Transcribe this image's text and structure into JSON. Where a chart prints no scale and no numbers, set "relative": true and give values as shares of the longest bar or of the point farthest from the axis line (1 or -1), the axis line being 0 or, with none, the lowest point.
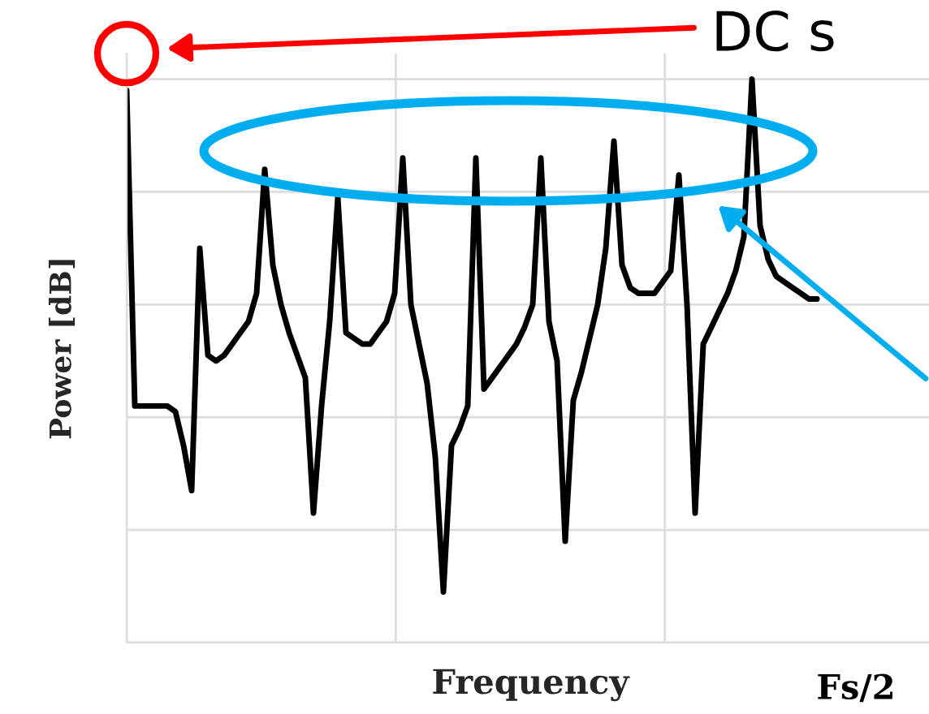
{
  "chart_data": {
    "type": "line",
    "relative": true,
    "xlabel": "Frequency",
    "ylabel": "Power [dB]",
    "grid": true,
    "annotations": [
      "DC s",
      "Fs/2"
    ],
    "categories": [
      null,
      null,
      null,
      null,
      null,
      null,
      null,
      null,
      null,
      null,
      null,
      null,
      null,
      null,
      null,
      null,
      null,
      null,
      null,
      null,
      null,
      null,
      null,
      null,
      null,
      null,
      null,
      null,
      null,
      null,
      null,
      null,
      null,
      null,
      null,
      null,
      null,
      null,
      null,
      null,
      null,
      null,
      null,
      null,
      null,
      null,
      null,
      null,
      null,
      null,
      null,
      null,
      null,
      null,
      null,
      null,
      null,
      null,
      null,
      null,
      null,
      null,
      null,
      null,
      null,
      null,
      null,
      null,
      null,
      null,
      null,
      null,
      null,
      null,
      null,
      null,
      null,
      null,
      null,
      null,
      null,
      null,
      null,
      null,
      null,
      null
    ],
    "series": [
      {
        "color": "#000000",
        "values": [
          0.98,
          0.42,
          0.42,
          0.42,
          0.42,
          0.42,
          0.41,
          0.35,
          0.27,
          0.7,
          0.51,
          0.5,
          0.51,
          0.53,
          0.55,
          0.57,
          0.62,
          0.84,
          0.67,
          0.6,
          0.55,
          0.51,
          0.47,
          0.23,
          0.42,
          0.57,
          0.79,
          0.55,
          0.54,
          0.53,
          0.53,
          0.55,
          0.57,
          0.62,
          0.86,
          0.6,
          0.53,
          0.46,
          0.33,
          0.09,
          0.35,
          0.38,
          0.42,
          0.86,
          0.45,
          0.47,
          0.49,
          0.51,
          0.53,
          0.56,
          0.6,
          0.86,
          0.57,
          0.5,
          0.18,
          0.43,
          0.48,
          0.54,
          0.6,
          0.7,
          0.89,
          0.67,
          0.63,
          0.62,
          0.62,
          0.62,
          0.64,
          0.66,
          0.83,
          0.6,
          0.23,
          0.53,
          0.56,
          0.59,
          0.62,
          0.66,
          0.72,
          1.0,
          0.74,
          0.68,
          0.65,
          0.64,
          0.63,
          0.62,
          0.61,
          0.61
        ]
      }
    ]
  }
}
